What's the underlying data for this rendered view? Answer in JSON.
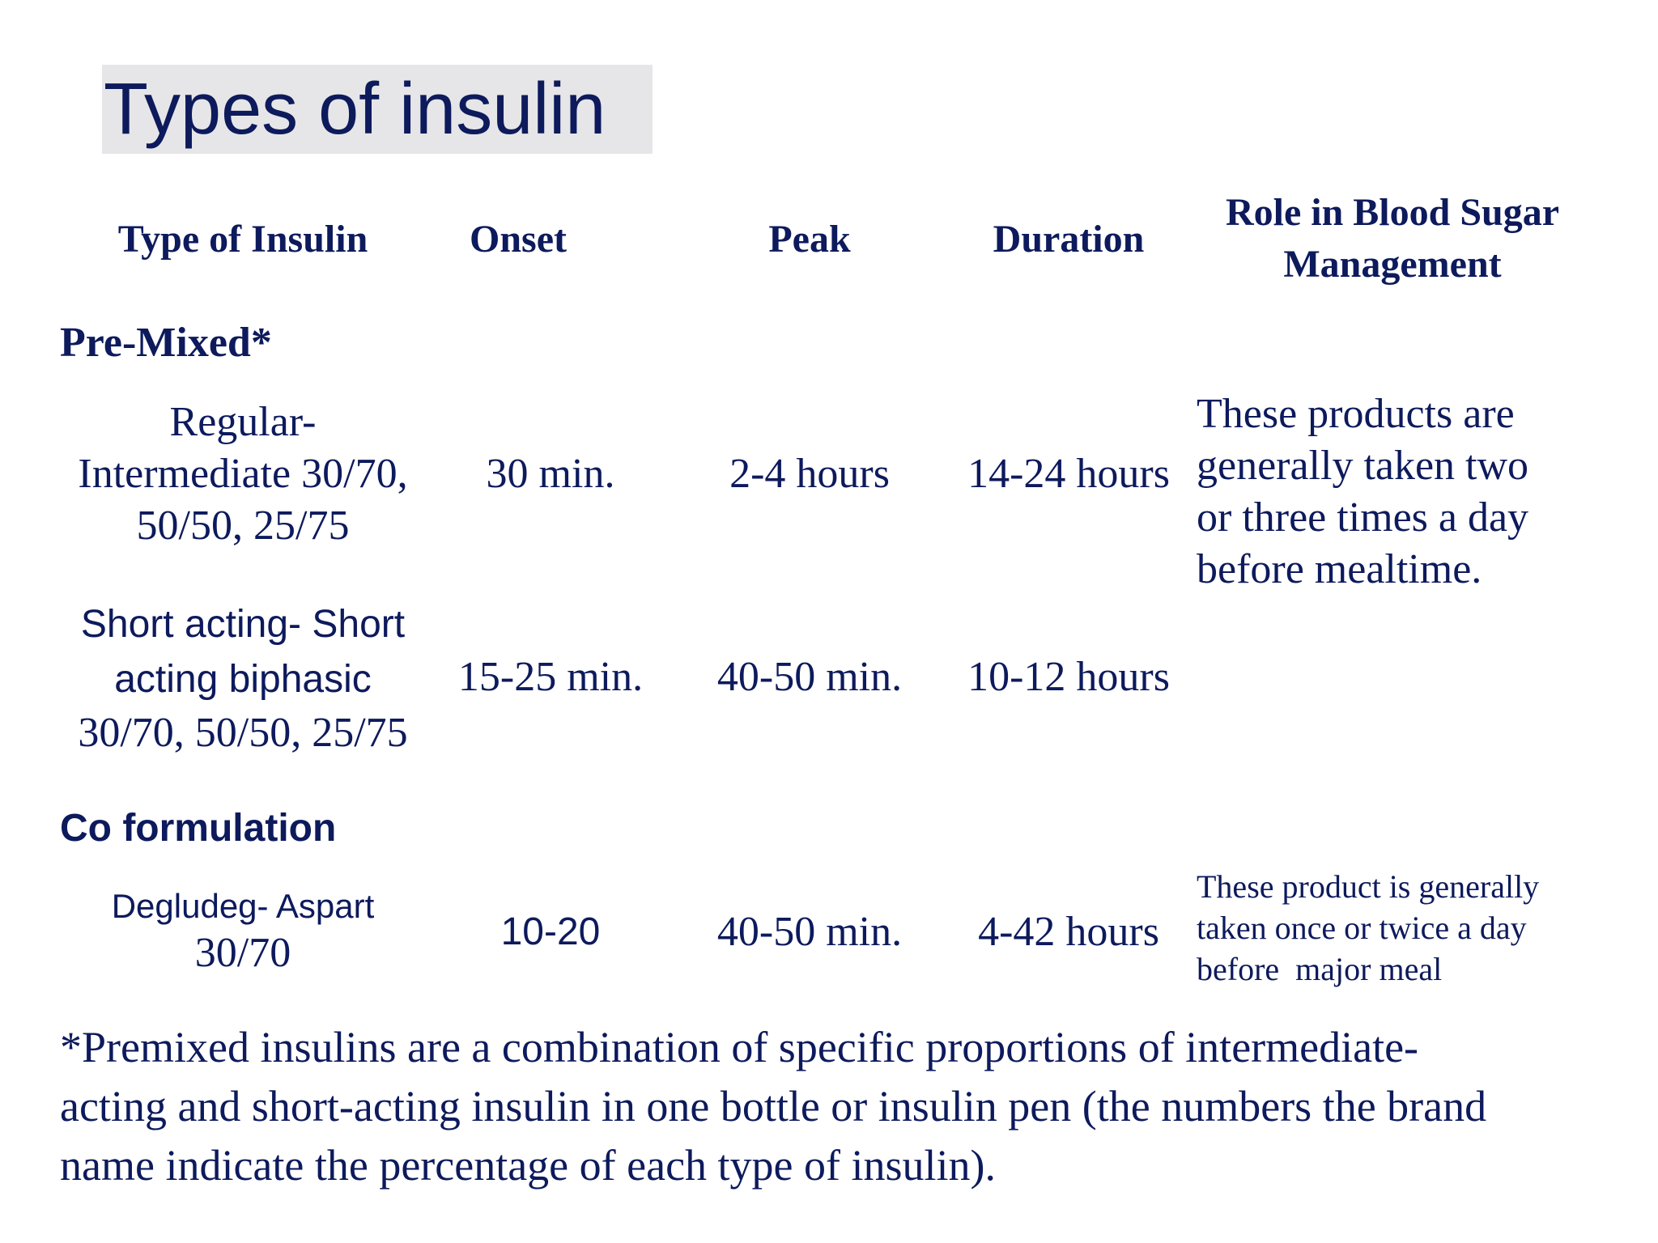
{
  "title": "Types of insulin",
  "table": {
    "headers": {
      "type": "Type of Insulin",
      "onset": "Onset",
      "peak": "Peak",
      "duration": "Duration",
      "role_line1": "Role in Blood Sugar",
      "role_line2": "Management"
    },
    "sections": [
      {
        "label": "Pre-Mixed*",
        "rows": [
          {
            "type_lines": [
              "Regular-",
              "Intermediate 30/70,",
              "50/50, 25/75"
            ],
            "onset": "30 min.",
            "peak": "2-4 hours",
            "duration": "14-24 hours",
            "role_lines": [
              "These products are",
              "generally taken two",
              "or three times a day",
              "before mealtime."
            ]
          },
          {
            "type_lines": [
              "Short acting- Short",
              "acting biphasic",
              "30/70, 50/50, 25/75"
            ],
            "onset": "15-25 min.",
            "peak": "40-50 min.",
            "duration": "10-12 hours"
          }
        ]
      },
      {
        "label": "Co formulation",
        "rows": [
          {
            "type_lines": [
              "Degludeg- Aspart",
              "30/70"
            ],
            "onset": "10-20",
            "peak": "40-50 min.",
            "duration": "4-42 hours",
            "role_lines": [
              "These product is generally",
              "taken once or twice a day",
              "before  major meal"
            ]
          }
        ]
      }
    ]
  },
  "footnote_lines": [
    "*Premixed insulins are a combination of specific proportions of intermediate-",
    "acting and short-acting insulin in one bottle or insulin pen (the numbers the brand",
    "name indicate the percentage of each type of insulin)."
  ]
}
